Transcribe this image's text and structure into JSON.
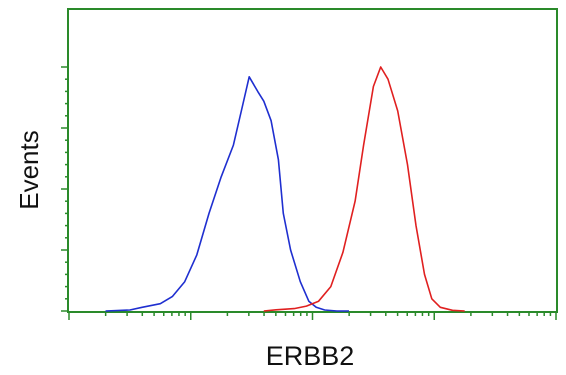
{
  "chart_data": {
    "type": "line",
    "title": "",
    "xlabel": "ERBB2",
    "ylabel": "Events",
    "xlim": [
      0,
      4
    ],
    "ylim": [
      0,
      100
    ],
    "x_scale": "log-decades",
    "grid": false,
    "legend": "none",
    "series": [
      {
        "color": "#1f2fd0",
        "x": [
          0.3,
          0.5,
          0.6,
          0.75,
          0.85,
          0.95,
          1.05,
          1.15,
          1.25,
          1.35,
          1.42,
          1.48,
          1.55,
          1.6,
          1.66,
          1.72,
          1.76,
          1.82,
          1.9,
          1.97,
          2.03,
          2.1,
          2.2,
          2.3
        ],
        "y": [
          0,
          0.4,
          1.5,
          3,
          6,
          12,
          23,
          40,
          55,
          68,
          83,
          96,
          90,
          86,
          78,
          62,
          40,
          25,
          12,
          4,
          1.5,
          0.4,
          0,
          0
        ]
      },
      {
        "color": "#e02020",
        "x": [
          1.6,
          1.7,
          1.85,
          1.95,
          2.05,
          2.15,
          2.25,
          2.35,
          2.42,
          2.5,
          2.56,
          2.62,
          2.7,
          2.78,
          2.85,
          2.92,
          2.98,
          3.05,
          3.15,
          3.25
        ],
        "y": [
          0,
          0.5,
          1,
          2,
          4,
          10,
          24,
          45,
          68,
          92,
          100,
          95,
          82,
          60,
          35,
          15,
          5,
          1.5,
          0.3,
          0
        ]
      }
    ]
  }
}
